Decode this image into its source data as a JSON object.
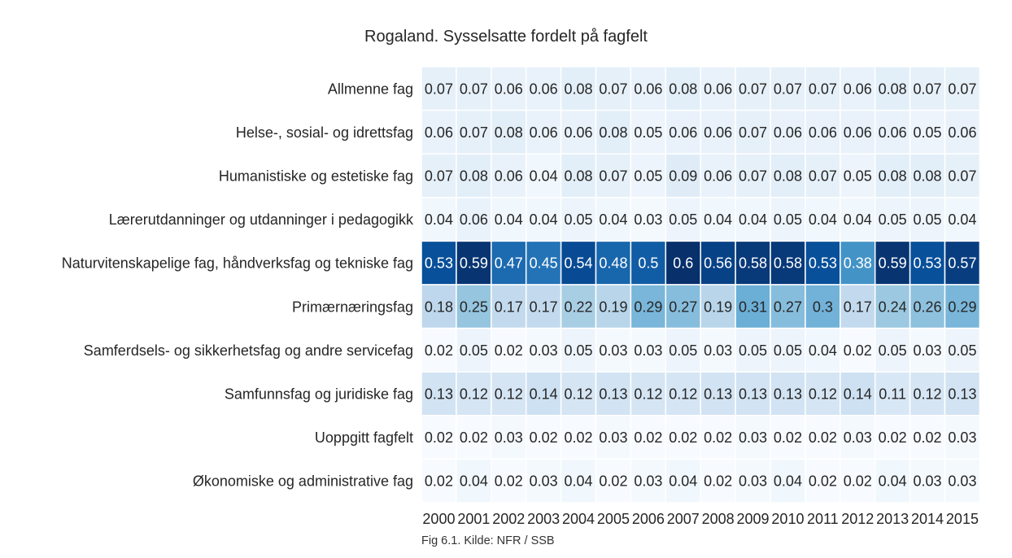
{
  "chart_data": {
    "type": "heatmap",
    "title": "Rogaland. Sysselsatte fordelt på fagfelt",
    "caption": "Fig 6.1. Kilde: NFR / SSB",
    "colormap": "Blues",
    "x": [
      "2000",
      "2001",
      "2002",
      "2003",
      "2004",
      "2005",
      "2006",
      "2007",
      "2008",
      "2009",
      "2010",
      "2011",
      "2012",
      "2013",
      "2014",
      "2015"
    ],
    "y": [
      "Allmenne fag",
      "Helse-, sosial- og idrettsfag",
      "Humanistiske og estetiske fag",
      "Lærerutdanninger og utdanninger i pedagogikk",
      "Naturvitenskapelige fag, håndverksfag og tekniske fag",
      "Primærnæringsfag",
      "Samferdsels- og sikkerhetsfag og andre servicefag",
      "Samfunnsfag og juridiske fag",
      "Uoppgitt fagfelt",
      "Økonomiske og administrative fag"
    ],
    "values": [
      [
        0.07,
        0.07,
        0.06,
        0.06,
        0.08,
        0.07,
        0.06,
        0.08,
        0.06,
        0.07,
        0.07,
        0.07,
        0.06,
        0.08,
        0.07,
        0.07
      ],
      [
        0.06,
        0.07,
        0.08,
        0.06,
        0.06,
        0.08,
        0.05,
        0.06,
        0.06,
        0.07,
        0.06,
        0.06,
        0.06,
        0.06,
        0.05,
        0.06
      ],
      [
        0.07,
        0.08,
        0.06,
        0.04,
        0.08,
        0.07,
        0.05,
        0.09,
        0.06,
        0.07,
        0.08,
        0.07,
        0.05,
        0.08,
        0.08,
        0.07
      ],
      [
        0.04,
        0.06,
        0.04,
        0.04,
        0.05,
        0.04,
        0.03,
        0.05,
        0.04,
        0.04,
        0.05,
        0.04,
        0.04,
        0.05,
        0.05,
        0.04
      ],
      [
        0.53,
        0.59,
        0.47,
        0.45,
        0.54,
        0.48,
        0.5,
        0.6,
        0.56,
        0.58,
        0.58,
        0.53,
        0.38,
        0.59,
        0.53,
        0.57
      ],
      [
        0.18,
        0.25,
        0.17,
        0.17,
        0.22,
        0.19,
        0.29,
        0.27,
        0.19,
        0.31,
        0.27,
        0.3,
        0.17,
        0.24,
        0.26,
        0.29
      ],
      [
        0.02,
        0.05,
        0.02,
        0.03,
        0.05,
        0.03,
        0.03,
        0.05,
        0.03,
        0.05,
        0.05,
        0.04,
        0.02,
        0.05,
        0.03,
        0.05
      ],
      [
        0.13,
        0.12,
        0.12,
        0.14,
        0.12,
        0.13,
        0.12,
        0.12,
        0.13,
        0.13,
        0.13,
        0.12,
        0.14,
        0.11,
        0.12,
        0.13
      ],
      [
        0.02,
        0.02,
        0.03,
        0.02,
        0.02,
        0.03,
        0.02,
        0.02,
        0.02,
        0.03,
        0.02,
        0.02,
        0.03,
        0.02,
        0.02,
        0.03
      ],
      [
        0.02,
        0.04,
        0.02,
        0.03,
        0.04,
        0.02,
        0.03,
        0.04,
        0.02,
        0.03,
        0.04,
        0.02,
        0.02,
        0.04,
        0.03,
        0.03
      ]
    ]
  }
}
